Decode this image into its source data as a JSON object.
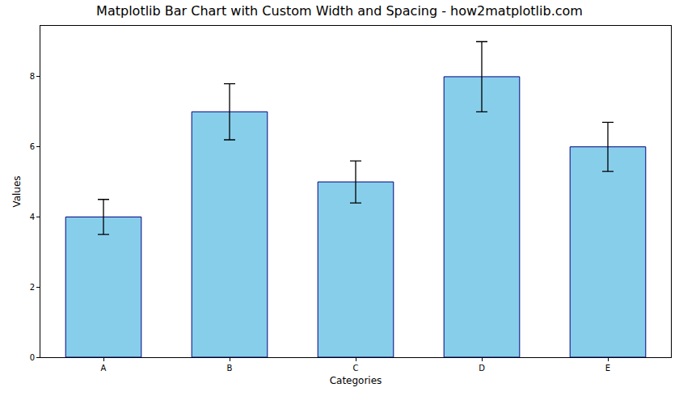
{
  "chart_data": {
    "type": "bar",
    "title": "Matplotlib Bar Chart with Custom Width and Spacing - how2matplotlib.com",
    "x_label": "Categories",
    "y_label": "Values",
    "categories": [
      "A",
      "B",
      "C",
      "D",
      "E"
    ],
    "values": [
      4,
      7,
      5,
      8,
      6
    ],
    "errors": [
      0.5,
      0.8,
      0.6,
      1.0,
      0.7
    ],
    "color": "#87ceeb",
    "ylim": [
      0,
      9.45
    ],
    "yticks": [
      0,
      2,
      4,
      6,
      8
    ],
    "grid": false
  }
}
